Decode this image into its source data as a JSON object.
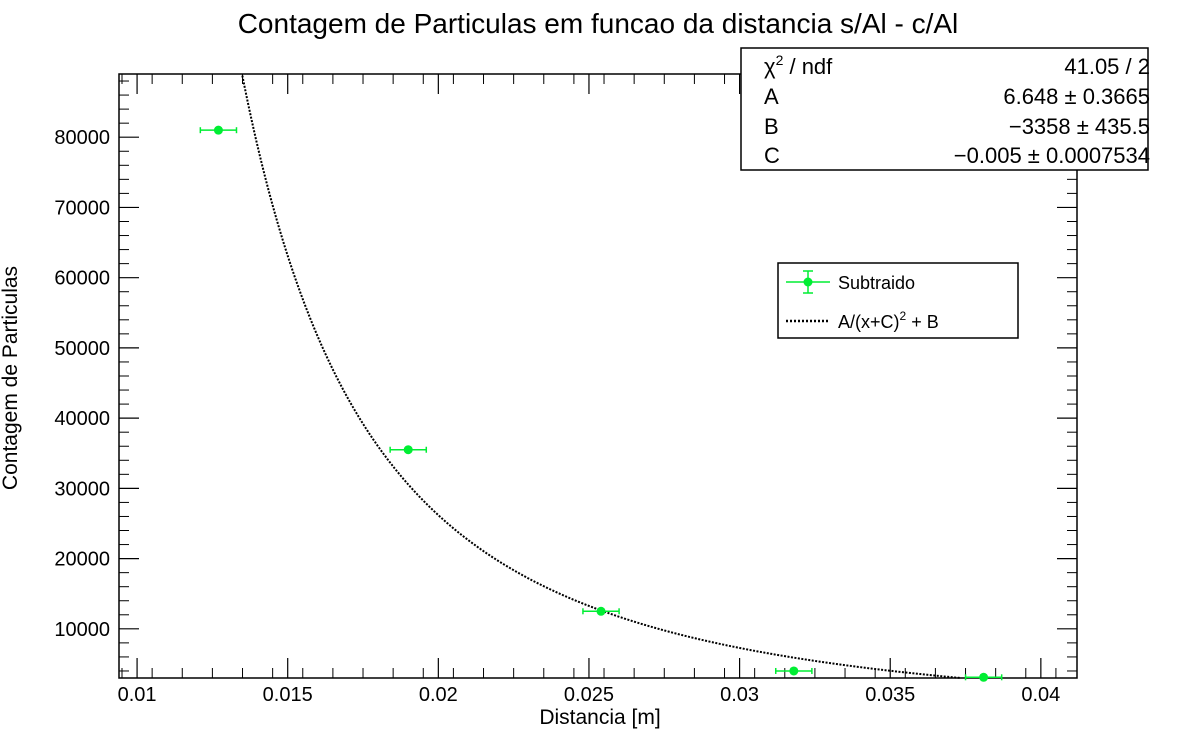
{
  "chart_data": {
    "type": "scatter",
    "title": "Contagem de Particulas em funcao da distancia s/Al - c/Al",
    "xlabel": "Distancia [m]",
    "ylabel": "Contagem de Particulas",
    "xlim": [
      0.0094,
      0.0412
    ],
    "ylim": [
      3000,
      89000
    ],
    "x_ticks": [
      0.01,
      0.015,
      0.02,
      0.025,
      0.03,
      0.035,
      0.04
    ],
    "x_tick_labels": [
      "0.01",
      "0.015",
      "0.02",
      "0.025",
      "0.03",
      "0.035",
      "0.04"
    ],
    "y_ticks": [
      10000,
      20000,
      30000,
      40000,
      50000,
      60000,
      70000,
      80000
    ],
    "y_tick_labels": [
      "10000",
      "20000",
      "30000",
      "40000",
      "50000",
      "60000",
      "70000",
      "80000"
    ],
    "series": [
      {
        "name": "Subtraido",
        "color": "#00ee33",
        "points": [
          {
            "x": 0.0127,
            "y": 81000,
            "xerr": 0.0006,
            "yerr": 400
          },
          {
            "x": 0.019,
            "y": 35500,
            "xerr": 0.0006,
            "yerr": 300
          },
          {
            "x": 0.0254,
            "y": 12500,
            "xerr": 0.0006,
            "yerr": 300
          },
          {
            "x": 0.0318,
            "y": 4000,
            "xerr": 0.0006,
            "yerr": 300
          },
          {
            "x": 0.0381,
            "y": 3100,
            "xerr": 0.0006,
            "yerr": 200
          }
        ]
      }
    ],
    "fit": {
      "name": "A/(x+C)",
      "name_sup": "2",
      "name_tail": " + B",
      "A": 6.648,
      "B": -3358,
      "C": -0.005,
      "x_range": [
        0.0094,
        0.0412
      ],
      "color": "#000000"
    },
    "legend": {
      "placement": "upper-right",
      "entries": [
        "Subtraido",
        "A/(x+C)2 + B"
      ]
    },
    "stats": {
      "rows": [
        {
          "label": "ndf_label",
          "value": "41.05 / 2"
        },
        {
          "label": "A",
          "value": "6.648 ± 0.3665"
        },
        {
          "label": "B",
          "value": "−3358 ± 435.5"
        },
        {
          "label": "C",
          "value": "−0.005 ± 0.0007534"
        }
      ],
      "chi_symbol": "χ",
      "chi_sup": "2",
      "chi_tail": " / ndf"
    }
  }
}
